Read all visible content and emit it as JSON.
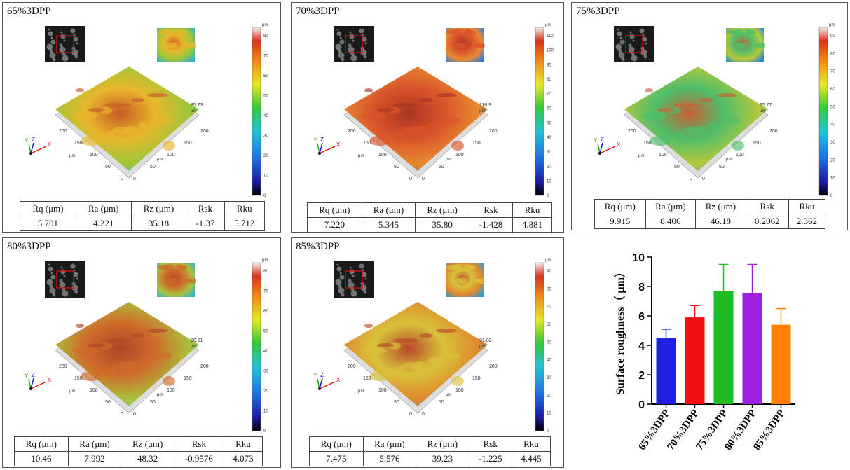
{
  "colorbar_unit": "μm",
  "axis_unit": "μm",
  "axis_letters": {
    "x": "X",
    "y": "Y",
    "z": "Z"
  },
  "metric_headers": [
    "Rq (μm)",
    "Ra (μm)",
    "Rz (μm)",
    "Rsk",
    "Rku"
  ],
  "panels": [
    {
      "title": "65%3DPP",
      "height_label": "85.73",
      "colorbar_ticks": [
        "0",
        "10",
        "20",
        "30",
        "40",
        "50",
        "60",
        "70",
        "80"
      ],
      "axis_ticks": [
        "200",
        "150",
        "100",
        "50",
        "0",
        "0",
        "50",
        "100",
        "150",
        "200"
      ],
      "metrics": [
        "5.701",
        "4.221",
        "35.18",
        "-1.37",
        "5.712"
      ]
    },
    {
      "title": "70%3DPP",
      "height_label": "116.9",
      "colorbar_ticks": [
        "0",
        "10",
        "20",
        "30",
        "40",
        "50",
        "60",
        "70",
        "80",
        "90",
        "100",
        "110"
      ],
      "axis_ticks": [
        "200",
        "150",
        "100",
        "50",
        "0",
        "0",
        "50",
        "100",
        "150",
        "200"
      ],
      "metrics": [
        "7.220",
        "5.345",
        "35.80",
        "-1.428",
        "4.881"
      ]
    },
    {
      "title": "75%3DPP",
      "height_label": "95.77",
      "colorbar_ticks": [
        "0",
        "10",
        "20",
        "30",
        "40",
        "50",
        "60",
        "70",
        "80",
        "90"
      ],
      "axis_ticks": [
        "200",
        "150",
        "100",
        "50",
        "0",
        "0",
        "50",
        "100",
        "150",
        "200"
      ],
      "metrics": [
        "9.915",
        "8.406",
        "46.18",
        "0.2062",
        "2.362"
      ]
    },
    {
      "title": "80%3DPP",
      "height_label": "86.51",
      "colorbar_ticks": [
        "0",
        "10",
        "20",
        "30",
        "40",
        "50",
        "60",
        "70",
        "80"
      ],
      "axis_ticks": [
        "200",
        "150",
        "100",
        "50",
        "0",
        "0",
        "50",
        "100",
        "150",
        "200"
      ],
      "metrics": [
        "10.46",
        "7.992",
        "48.32",
        "-0.9576",
        "4.073"
      ]
    },
    {
      "title": "85%3DPP",
      "height_label": "91.02",
      "colorbar_ticks": [
        "0",
        "10",
        "20",
        "30",
        "40",
        "50",
        "60",
        "70",
        "80",
        "90"
      ],
      "axis_ticks": [
        "200",
        "150",
        "100",
        "50",
        "0",
        "0",
        "50",
        "100",
        "150",
        "200"
      ],
      "metrics": [
        "7.475",
        "5.576",
        "39.23",
        "-1.225",
        "4.445"
      ]
    }
  ],
  "chart_data": {
    "type": "bar",
    "categories": [
      "65%3DPP",
      "70%3DPP",
      "75%3DPP",
      "80%3DPP",
      "85%3DPP"
    ],
    "values": [
      4.5,
      5.9,
      7.7,
      7.55,
      5.4
    ],
    "errors": [
      0.6,
      0.8,
      1.8,
      1.95,
      1.1
    ],
    "colors": [
      "#1f1fe6",
      "#f01010",
      "#22bb22",
      "#a020e0",
      "#ff8000"
    ],
    "ylabel": "Surface roughness（ μm）",
    "ylim": [
      0,
      10
    ],
    "yticks": [
      "0",
      "2",
      "4",
      "6",
      "8",
      "10"
    ]
  }
}
